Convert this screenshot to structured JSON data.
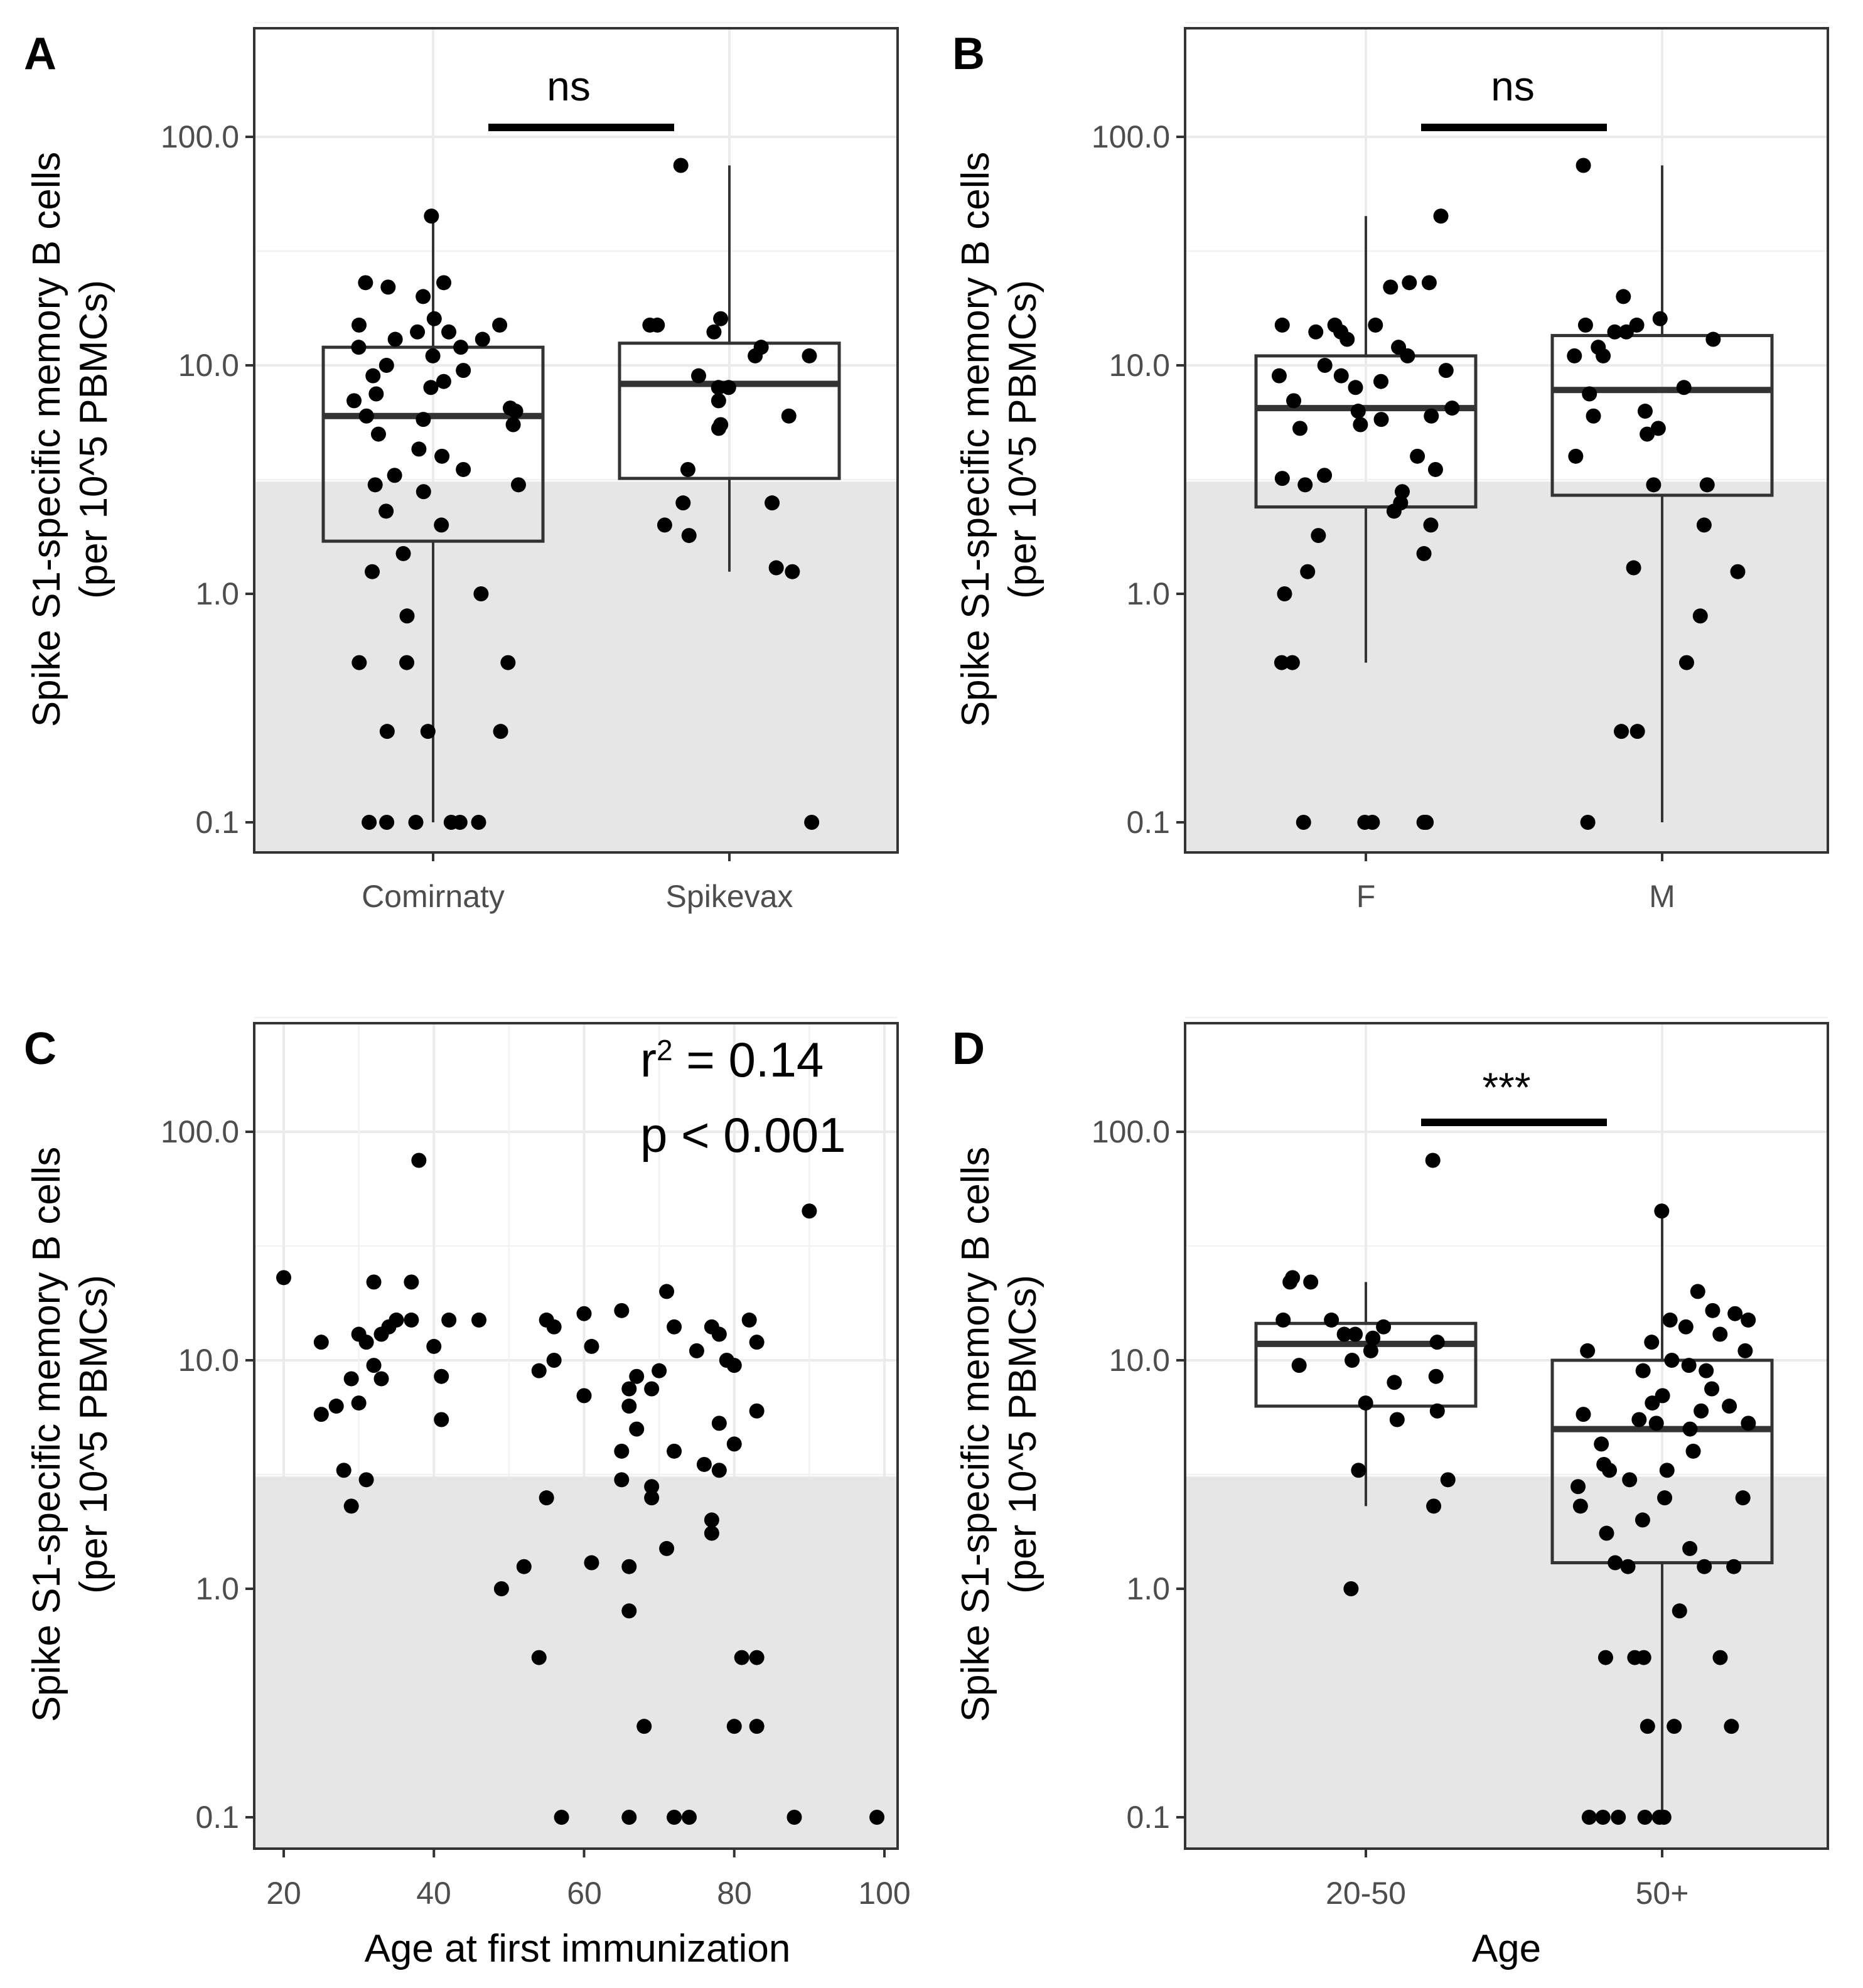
{
  "figure": {
    "y_axis_title_line1": "Spike S1-specific memory B cells",
    "y_axis_title_line2": "(per 10^5 PBMCs)",
    "y_scale": "log10",
    "y_ticks": [
      0.1,
      1.0,
      10.0,
      100.0
    ],
    "y_tick_labels": [
      "0.1",
      "1.0",
      "10.0",
      "100.0"
    ],
    "shaded_threshold": 3.1,
    "colors": {
      "points": "#000000",
      "shade": "#e6e6e6",
      "box": "#333333",
      "grid": "#ebebeb"
    }
  },
  "chart_data": [
    {
      "panel": "A",
      "type": "box",
      "categories": [
        "Comirnaty",
        "Spikevax"
      ],
      "xlabel": "",
      "ylabel": "Spike S1-specific memory B cells (per 10^5 PBMCs)",
      "ylim": [
        0.07,
        300
      ],
      "annotation": "ns",
      "box_stats": [
        {
          "q1": 1.7,
          "median": 6.0,
          "q3": 12.0,
          "whisker_low": 0.1,
          "whisker_high": 45
        },
        {
          "q1": 3.2,
          "median": 8.3,
          "q3": 12.5,
          "whisker_low": 1.25,
          "whisker_high": 75
        }
      ],
      "groups": [
        [
          45,
          23,
          23,
          22,
          20,
          16,
          15,
          15,
          14,
          14,
          13,
          13,
          12,
          12,
          11,
          10,
          9.5,
          9.0,
          8.5,
          8.0,
          7.5,
          7.0,
          6.5,
          6.3,
          6.0,
          5.8,
          5.5,
          5.0,
          4.3,
          4.0,
          3.5,
          3.3,
          3.0,
          3.0,
          2.8,
          2.3,
          2.0,
          1.5,
          1.25,
          1.0,
          0.8,
          0.5,
          0.5,
          0.5,
          0.25,
          0.25,
          0.25,
          0.1,
          0.1,
          0.1,
          0.1,
          0.1,
          0.1
        ],
        [
          75,
          16,
          15,
          15,
          14,
          12,
          11,
          11,
          9,
          8,
          8,
          7,
          6,
          5.5,
          5.3,
          3.5,
          2.5,
          2.5,
          2.0,
          1.8,
          1.3,
          1.25,
          0.1
        ]
      ]
    },
    {
      "panel": "B",
      "type": "box",
      "categories": [
        "F",
        "M"
      ],
      "xlabel": "",
      "ylabel": "Spike S1-specific memory B cells (per 10^5 PBMCs)",
      "ylim": [
        0.07,
        300
      ],
      "annotation": "ns",
      "box_stats": [
        {
          "q1": 2.4,
          "median": 6.5,
          "q3": 11.0,
          "whisker_low": 0.5,
          "whisker_high": 45
        },
        {
          "q1": 2.7,
          "median": 7.8,
          "q3": 13.5,
          "whisker_low": 0.1,
          "whisker_high": 75
        }
      ],
      "groups": [
        [
          45,
          23,
          23,
          22,
          15,
          15,
          15,
          14,
          14,
          13,
          12,
          11,
          10,
          9.5,
          9.0,
          9.0,
          8.5,
          8.0,
          7.0,
          6.5,
          6.3,
          6.0,
          5.8,
          5.5,
          5.3,
          4.0,
          3.5,
          3.3,
          3.2,
          3.0,
          2.8,
          2.5,
          2.3,
          2.0,
          1.8,
          1.5,
          1.25,
          1.0,
          0.5,
          0.5,
          0.1,
          0.1,
          0.1,
          0.1,
          0.1
        ],
        [
          75,
          20,
          16,
          15,
          15,
          14,
          14,
          13,
          12,
          11,
          11,
          8,
          7.5,
          6.3,
          6.0,
          5.3,
          5.0,
          4.0,
          3.0,
          3.0,
          2.0,
          1.3,
          1.25,
          0.8,
          0.5,
          0.25,
          0.25,
          0.1
        ]
      ]
    },
    {
      "panel": "C",
      "type": "scatter",
      "xlabel": "Age at first immunization",
      "ylabel": "Spike S1-specific memory B cells (per 10^5 PBMCs)",
      "xlim": [
        17,
        102
      ],
      "ylim": [
        0.07,
        300
      ],
      "x_ticks": [
        20,
        40,
        60,
        80,
        100
      ],
      "x_tick_labels": [
        "20",
        "40",
        "60",
        "80",
        "100"
      ],
      "annotation_r2_prefix": "r",
      "annotation_r2_exp": "2",
      "annotation_r2_value": " = 0.14",
      "annotation_p": "p < 0.001",
      "points": [
        [
          20,
          23
        ],
        [
          25,
          12
        ],
        [
          25,
          5.8
        ],
        [
          27,
          6.3
        ],
        [
          28,
          3.3
        ],
        [
          29,
          2.3
        ],
        [
          29,
          8.3
        ],
        [
          30,
          6.5
        ],
        [
          30,
          13
        ],
        [
          31,
          3.0
        ],
        [
          31,
          12
        ],
        [
          32,
          22
        ],
        [
          32,
          9.5
        ],
        [
          33,
          13
        ],
        [
          33,
          8.3
        ],
        [
          34,
          14
        ],
        [
          35,
          15
        ],
        [
          37,
          22
        ],
        [
          37,
          15
        ],
        [
          38,
          75
        ],
        [
          40,
          11.5
        ],
        [
          41,
          8.5
        ],
        [
          41,
          5.5
        ],
        [
          42,
          15
        ],
        [
          46,
          15
        ],
        [
          49,
          1.0
        ],
        [
          52,
          1.25
        ],
        [
          54,
          9
        ],
        [
          54,
          0.5
        ],
        [
          55,
          15
        ],
        [
          55,
          2.5
        ],
        [
          56,
          14
        ],
        [
          56,
          10
        ],
        [
          57,
          0.1
        ],
        [
          60,
          16
        ],
        [
          60,
          7
        ],
        [
          61,
          1.3
        ],
        [
          61,
          11.5
        ],
        [
          65,
          16.5
        ],
        [
          65,
          4
        ],
        [
          65,
          3
        ],
        [
          66,
          1.25
        ],
        [
          66,
          6.3
        ],
        [
          66,
          7.5
        ],
        [
          66,
          0.8
        ],
        [
          66,
          0.1
        ],
        [
          67,
          5
        ],
        [
          67,
          8.5
        ],
        [
          68,
          0.25
        ],
        [
          69,
          2.5
        ],
        [
          69,
          2.8
        ],
        [
          69,
          7.5
        ],
        [
          70,
          9
        ],
        [
          71,
          1.5
        ],
        [
          71,
          20
        ],
        [
          72,
          4
        ],
        [
          72,
          14
        ],
        [
          72,
          0.1
        ],
        [
          74,
          0.1
        ],
        [
          75,
          11
        ],
        [
          76,
          3.5
        ],
        [
          77,
          2
        ],
        [
          77,
          1.75
        ],
        [
          77,
          14
        ],
        [
          78,
          3.3
        ],
        [
          78,
          5.3
        ],
        [
          78,
          13
        ],
        [
          79,
          10
        ],
        [
          80,
          4.3
        ],
        [
          80,
          9.5
        ],
        [
          80,
          0.25
        ],
        [
          81,
          0.5
        ],
        [
          82,
          15
        ],
        [
          83,
          12
        ],
        [
          83,
          6
        ],
        [
          83,
          0.5
        ],
        [
          83,
          0.25
        ],
        [
          88,
          0.1
        ],
        [
          90,
          45
        ],
        [
          99,
          0.1
        ]
      ]
    },
    {
      "panel": "D",
      "type": "box",
      "categories": [
        "20-50",
        "50+"
      ],
      "xlabel": "Age",
      "ylabel": "Spike S1-specific memory B cells (per 10^5 PBMCs)",
      "ylim": [
        0.07,
        300
      ],
      "annotation": "***",
      "box_stats": [
        {
          "q1": 6.3,
          "median": 11.8,
          "q3": 14.5,
          "whisker_low": 2.3,
          "whisker_high": 22
        },
        {
          "q1": 1.3,
          "median": 5.0,
          "q3": 10.0,
          "whisker_low": 0.1,
          "whisker_high": 45
        }
      ],
      "groups": [
        [
          75,
          23,
          22,
          22,
          15,
          15,
          14,
          13,
          13,
          12.5,
          12,
          11,
          10,
          9.5,
          8.5,
          8.0,
          6.5,
          6.0,
          5.5,
          3.3,
          3.0,
          2.3,
          1.0
        ],
        [
          45,
          20,
          16.5,
          16,
          15,
          15,
          14,
          13,
          12,
          11,
          11,
          10,
          9.5,
          9,
          9,
          7.5,
          7.0,
          6.5,
          6.3,
          6.0,
          5.8,
          5.5,
          5.3,
          5.3,
          5.0,
          4.3,
          4.0,
          3.5,
          3.3,
          3.3,
          3.0,
          2.8,
          2.5,
          2.5,
          2.3,
          2.0,
          1.75,
          1.5,
          1.3,
          1.25,
          1.25,
          1.25,
          0.8,
          0.5,
          0.5,
          0.5,
          0.5,
          0.25,
          0.25,
          0.25,
          0.1,
          0.1,
          0.1,
          0.1,
          0.1,
          0.1
        ]
      ]
    }
  ]
}
